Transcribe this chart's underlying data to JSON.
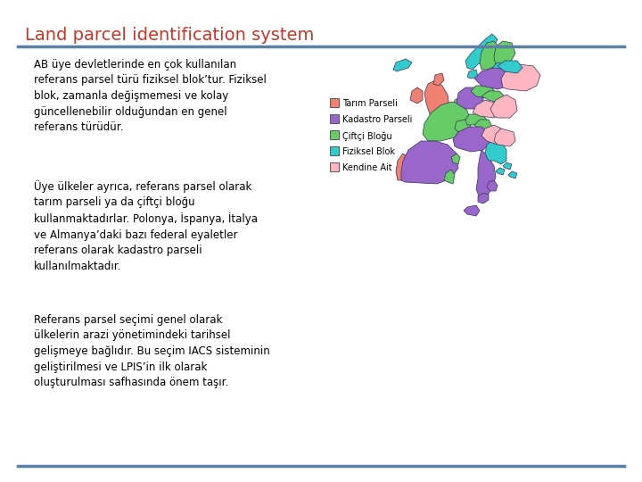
{
  "title": "Land parcel identification system",
  "title_color": "#C0392B",
  "title_fontsize": 14,
  "bg_color": "#FFFFFF",
  "separator_color": "#5B7FA6",
  "separator_linewidth": 2.5,
  "paragraph1": "AB üye devletlerinde en çok kullanılan\nreferans parsel türü fiziksel blok’tur. Fiziksel\nblok, zamanla değişmemesi ve kolay\ngüncellenebilir olduğundan en genel\nreferans türüdür.",
  "paragraph2": "Üye ülkeler ayrıca, referans parsel olarak\ntarım parseli ya da çiftçi bloğu\nkullanmaktadırlar. Polonya, İspanya, İtalya\nve Almanya’daki bazı federal eyaletler\nreferans olarak kadastro parseli\nkullanılmaktadır.",
  "paragraph3": "Referans parsel seçimi genel olarak\nülkelerin arazi yönetimindeki tarihsel\ngelişmeye bağlıdır. Bu seçim IACS sisteminin\ngeliştirilmesi ve LPIS’in ilk olarak\noluşturulması safhasında önem taşır.",
  "text_fontsize": 8.5,
  "text_color": "#000000",
  "legend_items": [
    {
      "label": "Tarım Parseli",
      "color": "#F08070"
    },
    {
      "label": "Kadastro Parseli",
      "color": "#9966CC"
    },
    {
      "label": "Çiftçi Bloğu",
      "color": "#66CC66"
    },
    {
      "label": "Fiziksel Blok",
      "color": "#33CCCC"
    },
    {
      "label": "Kendine Ait",
      "color": "#FFB6C1"
    }
  ],
  "salmon": "#F08070",
  "purple": "#9966CC",
  "green": "#66CC66",
  "cyan": "#33CCCC",
  "pink": "#FFB6C1",
  "edge_color": "#333355",
  "edge_lw": 0.5
}
